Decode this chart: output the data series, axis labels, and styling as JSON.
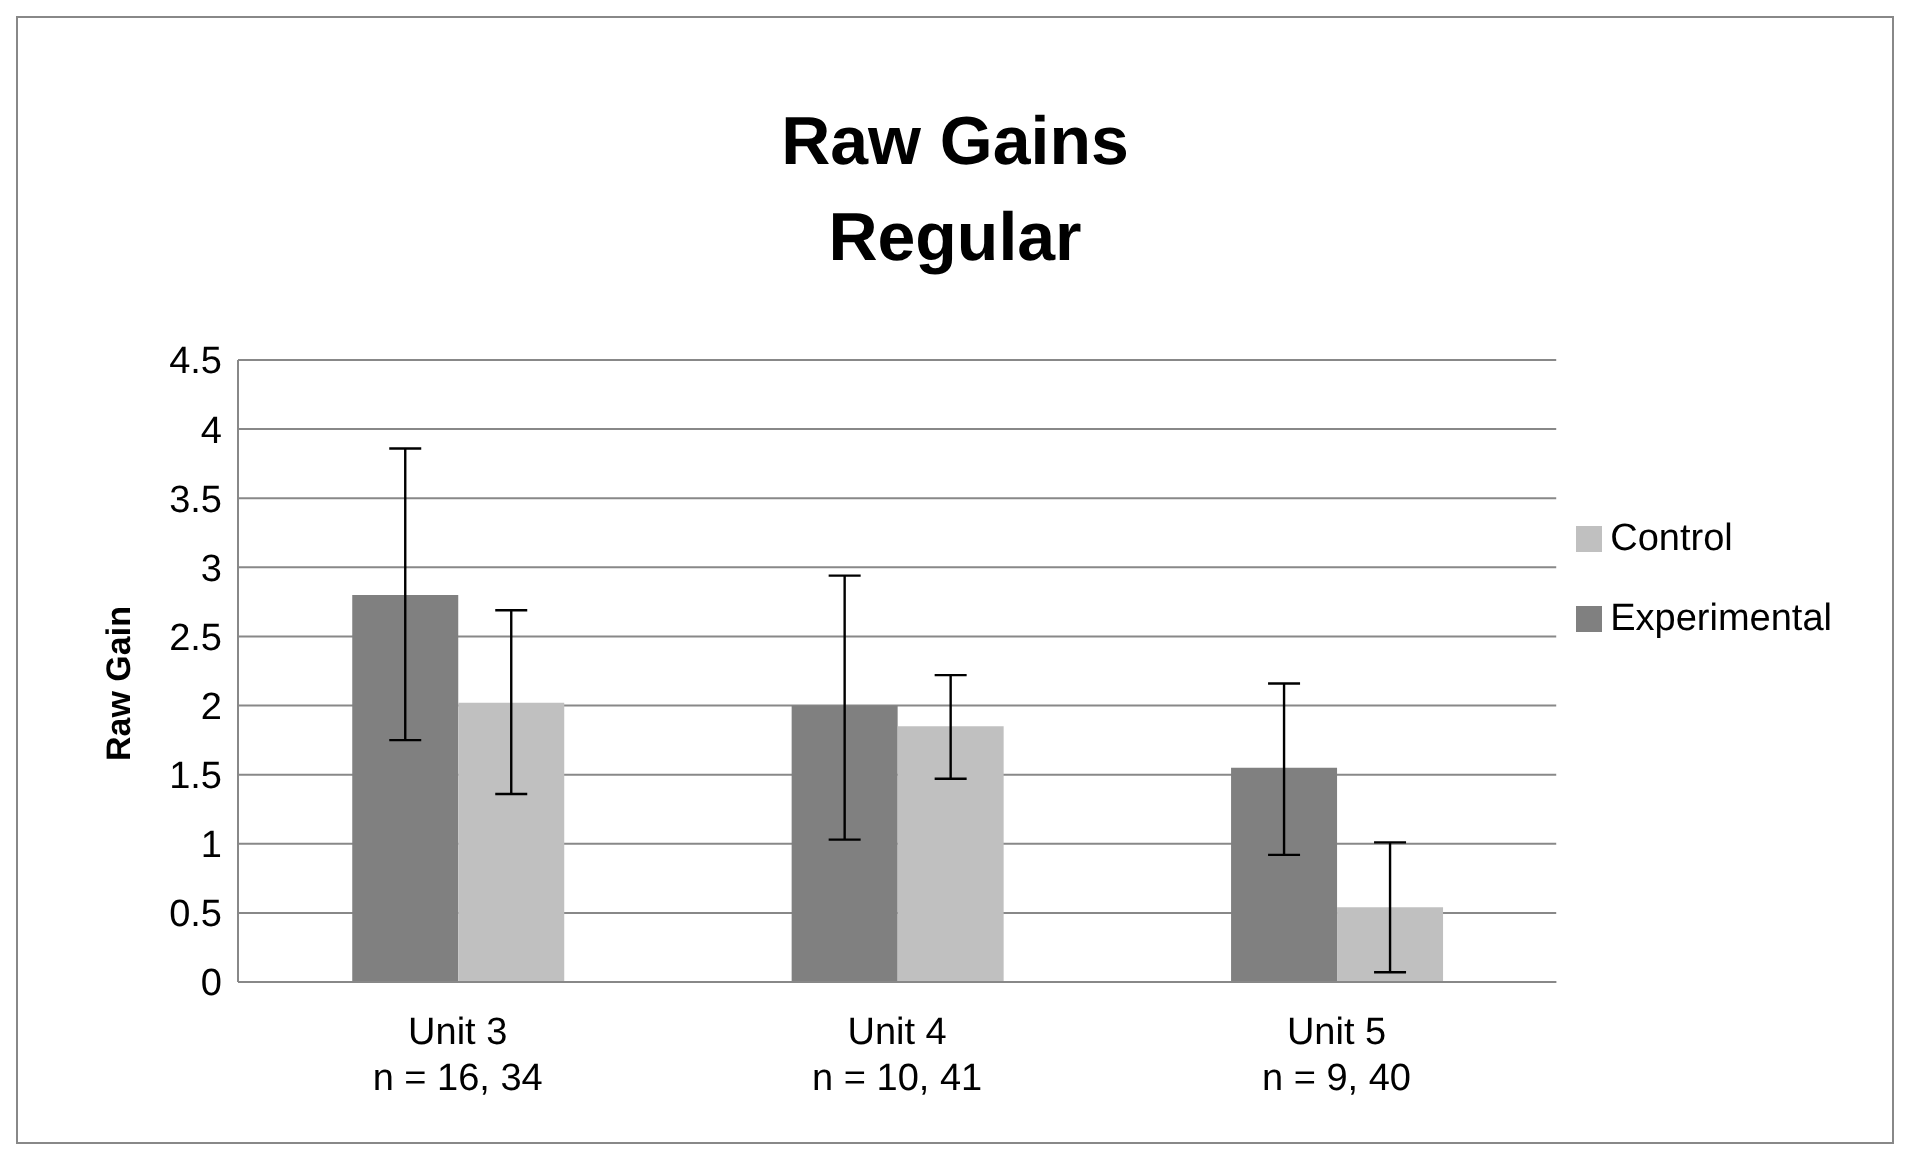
{
  "chart_data": {
    "type": "bar",
    "title": "Raw Gains\nRegular",
    "ylabel": "Raw Gain",
    "categories": [
      "Unit 3\nn = 16, 34",
      "Unit 4\nn = 10, 41",
      "Unit 5\nn = 9, 40"
    ],
    "series": [
      {
        "name": "Experimental",
        "color": "#808080",
        "values": [
          2.8,
          2.0,
          1.55
        ],
        "errors": [
          [
            1.75,
            3.86
          ],
          [
            1.03,
            2.94
          ],
          [
            0.92,
            2.16
          ]
        ]
      },
      {
        "name": "Control",
        "color": "#c0c0c0",
        "values": [
          2.02,
          1.85,
          0.54
        ],
        "errors": [
          [
            1.36,
            2.69
          ],
          [
            1.47,
            2.22
          ],
          [
            0.07,
            1.01
          ]
        ]
      }
    ],
    "ylim": [
      0,
      4.5
    ],
    "yticks": [
      0,
      0.5,
      1,
      1.5,
      2,
      2.5,
      3,
      3.5,
      4,
      4.5
    ],
    "grid": "y",
    "legend": "right"
  }
}
